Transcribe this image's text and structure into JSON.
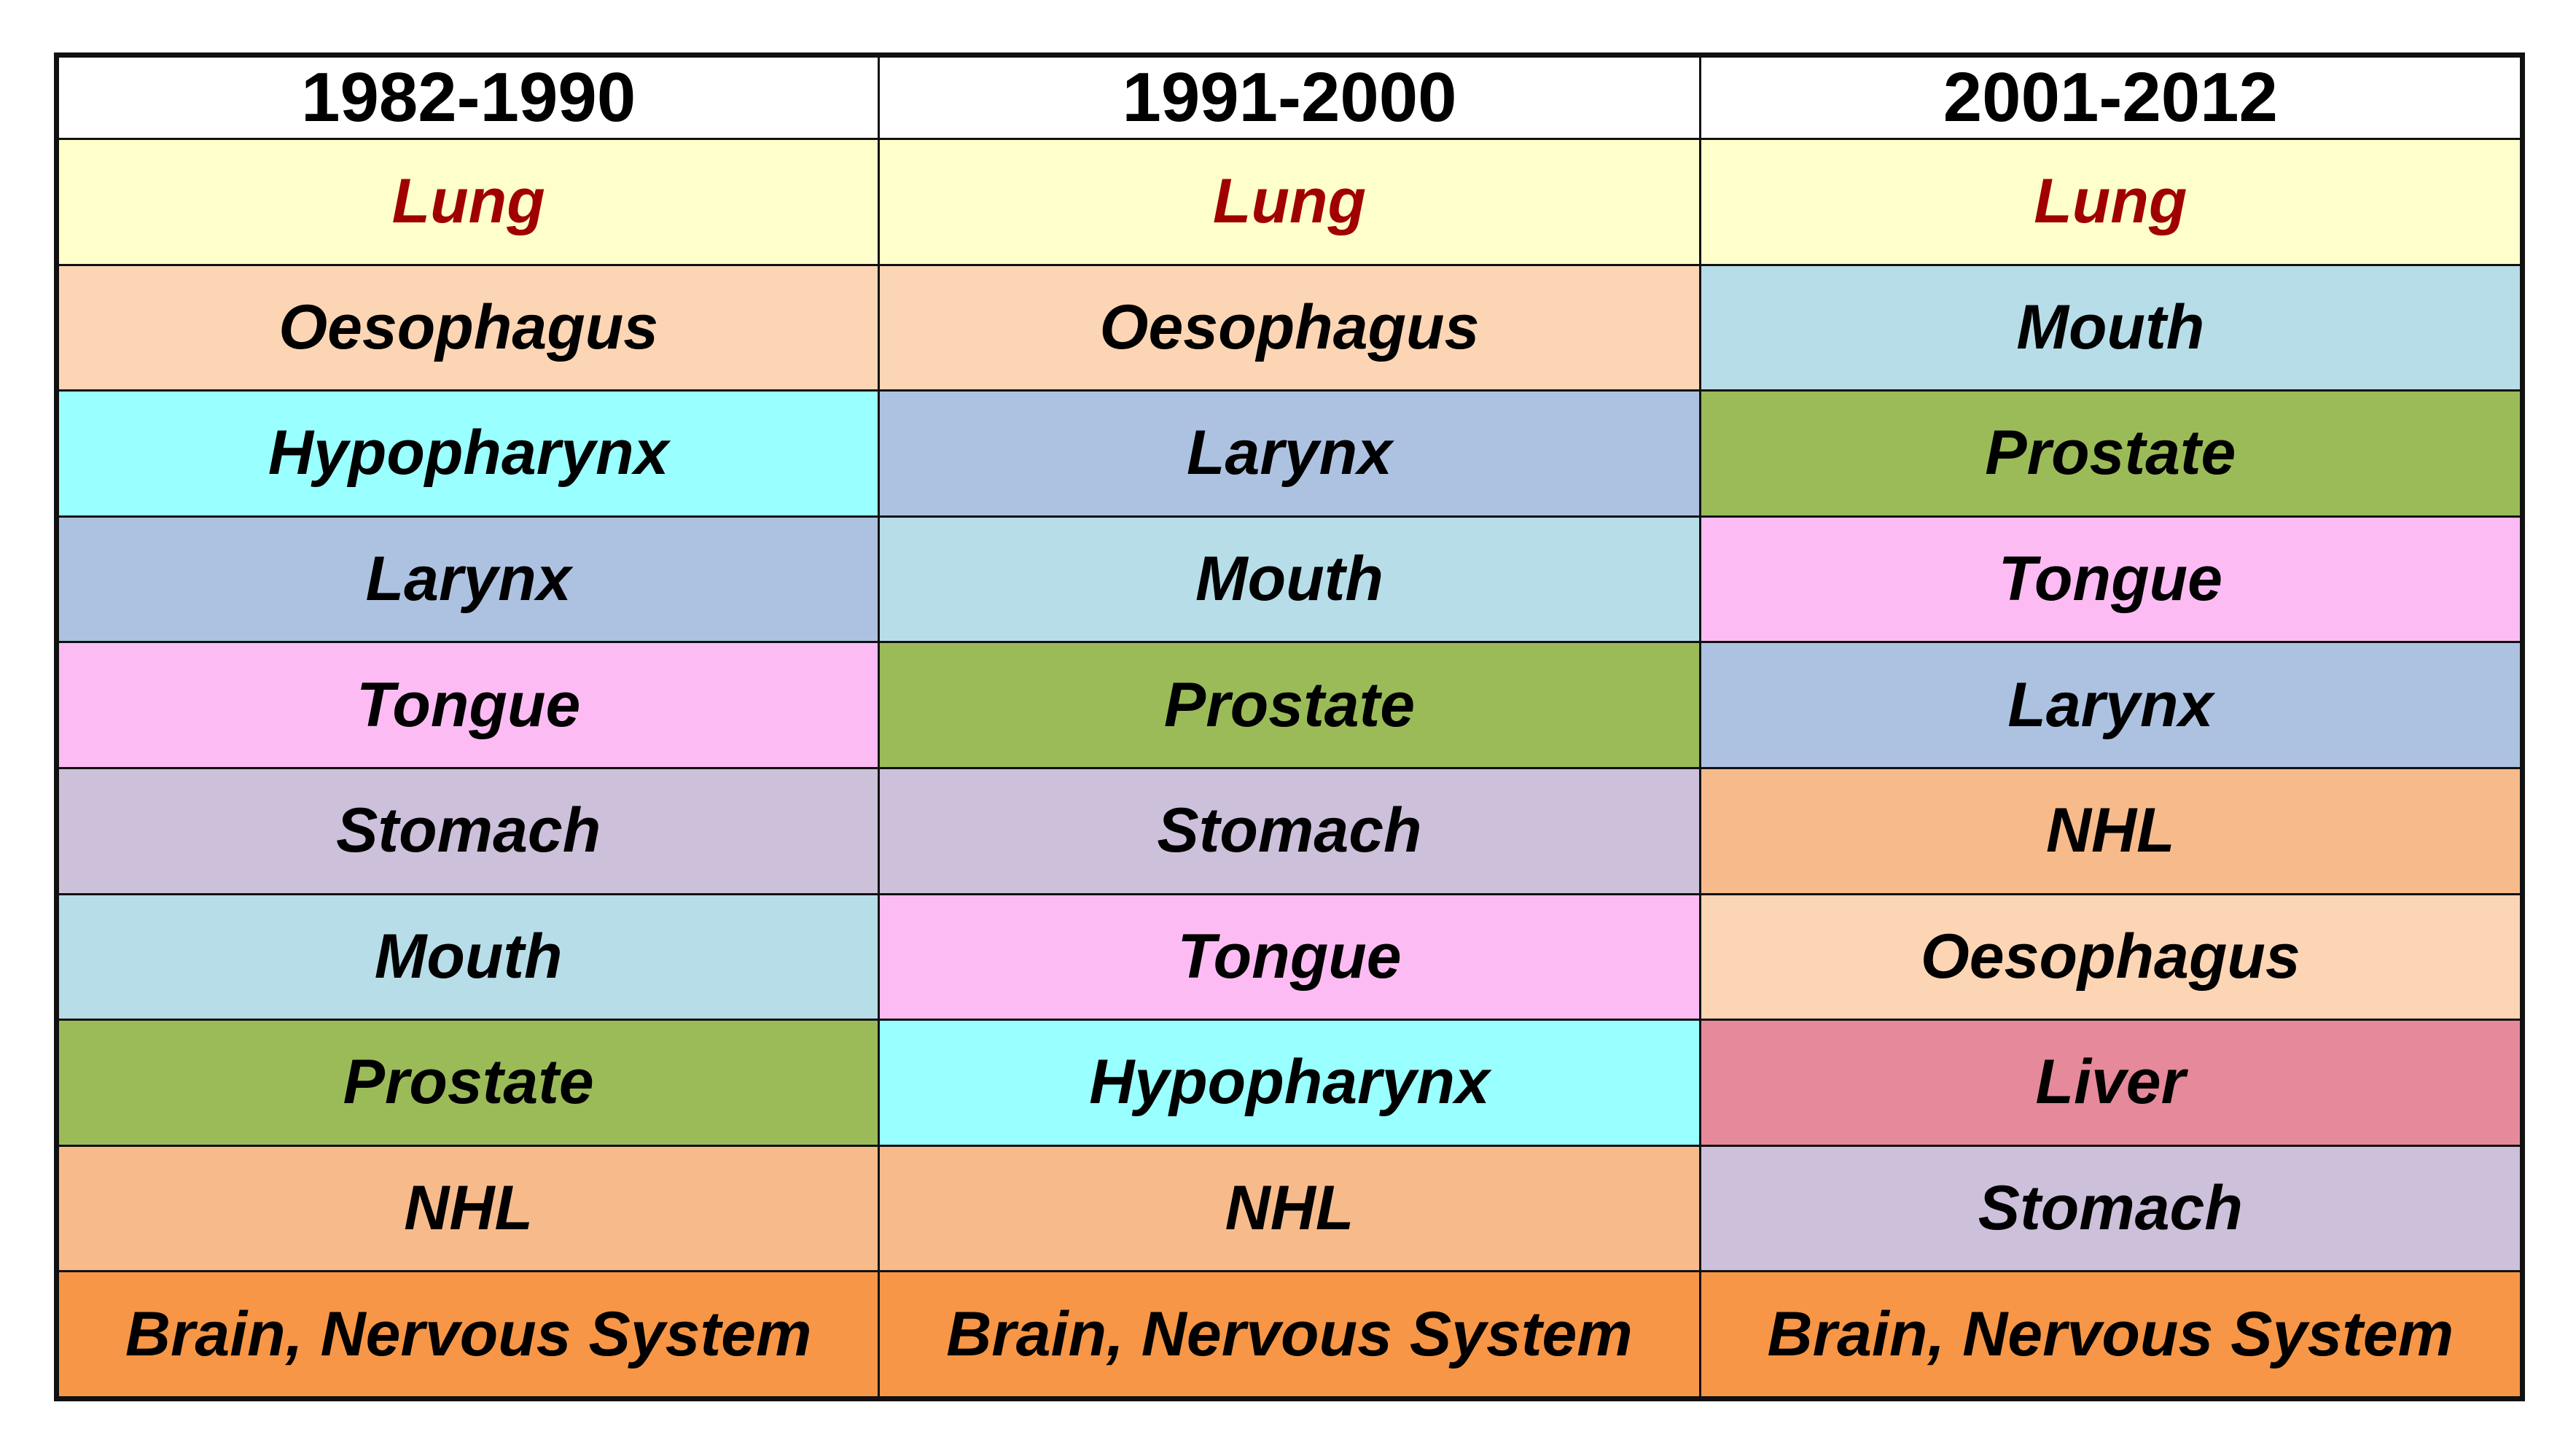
{
  "chart_data": {
    "type": "table",
    "columns": [
      "1982-1990",
      "1991-2000",
      "2001-2012"
    ],
    "rows": [
      [
        "Lung",
        "Lung",
        "Lung"
      ],
      [
        "Oesophagus",
        "Oesophagus",
        "Mouth"
      ],
      [
        "Hypopharynx",
        "Larynx",
        "Prostate"
      ],
      [
        "Larynx",
        "Mouth",
        "Tongue"
      ],
      [
        "Tongue",
        "Prostate",
        "Larynx"
      ],
      [
        "Stomach",
        "Stomach",
        "NHL"
      ],
      [
        "Mouth",
        "Tongue",
        "Oesophagus"
      ],
      [
        "Prostate",
        "Hypopharynx",
        "Liver"
      ],
      [
        "NHL",
        "NHL",
        "Stomach"
      ],
      [
        "Brain, Nervous System",
        "Brain, Nervous System",
        "Brain, Nervous System"
      ]
    ],
    "site_colors": {
      "Lung": "#ffffcc",
      "Oesophagus": "#fcd5b5",
      "Hypopharynx": "#99ffff",
      "Larynx": "#adc2e0",
      "Tongue": "#fcbcf3",
      "Stomach": "#ccc0da",
      "Mouth": "#b7dde8",
      "Prostate": "#9bbb59",
      "NHL": "#f7bb8b",
      "Liver": "#e6899b",
      "Brain, Nervous System": "#f79646"
    },
    "highlight_text_color": "#a00000",
    "highlight_site": "Lung"
  }
}
